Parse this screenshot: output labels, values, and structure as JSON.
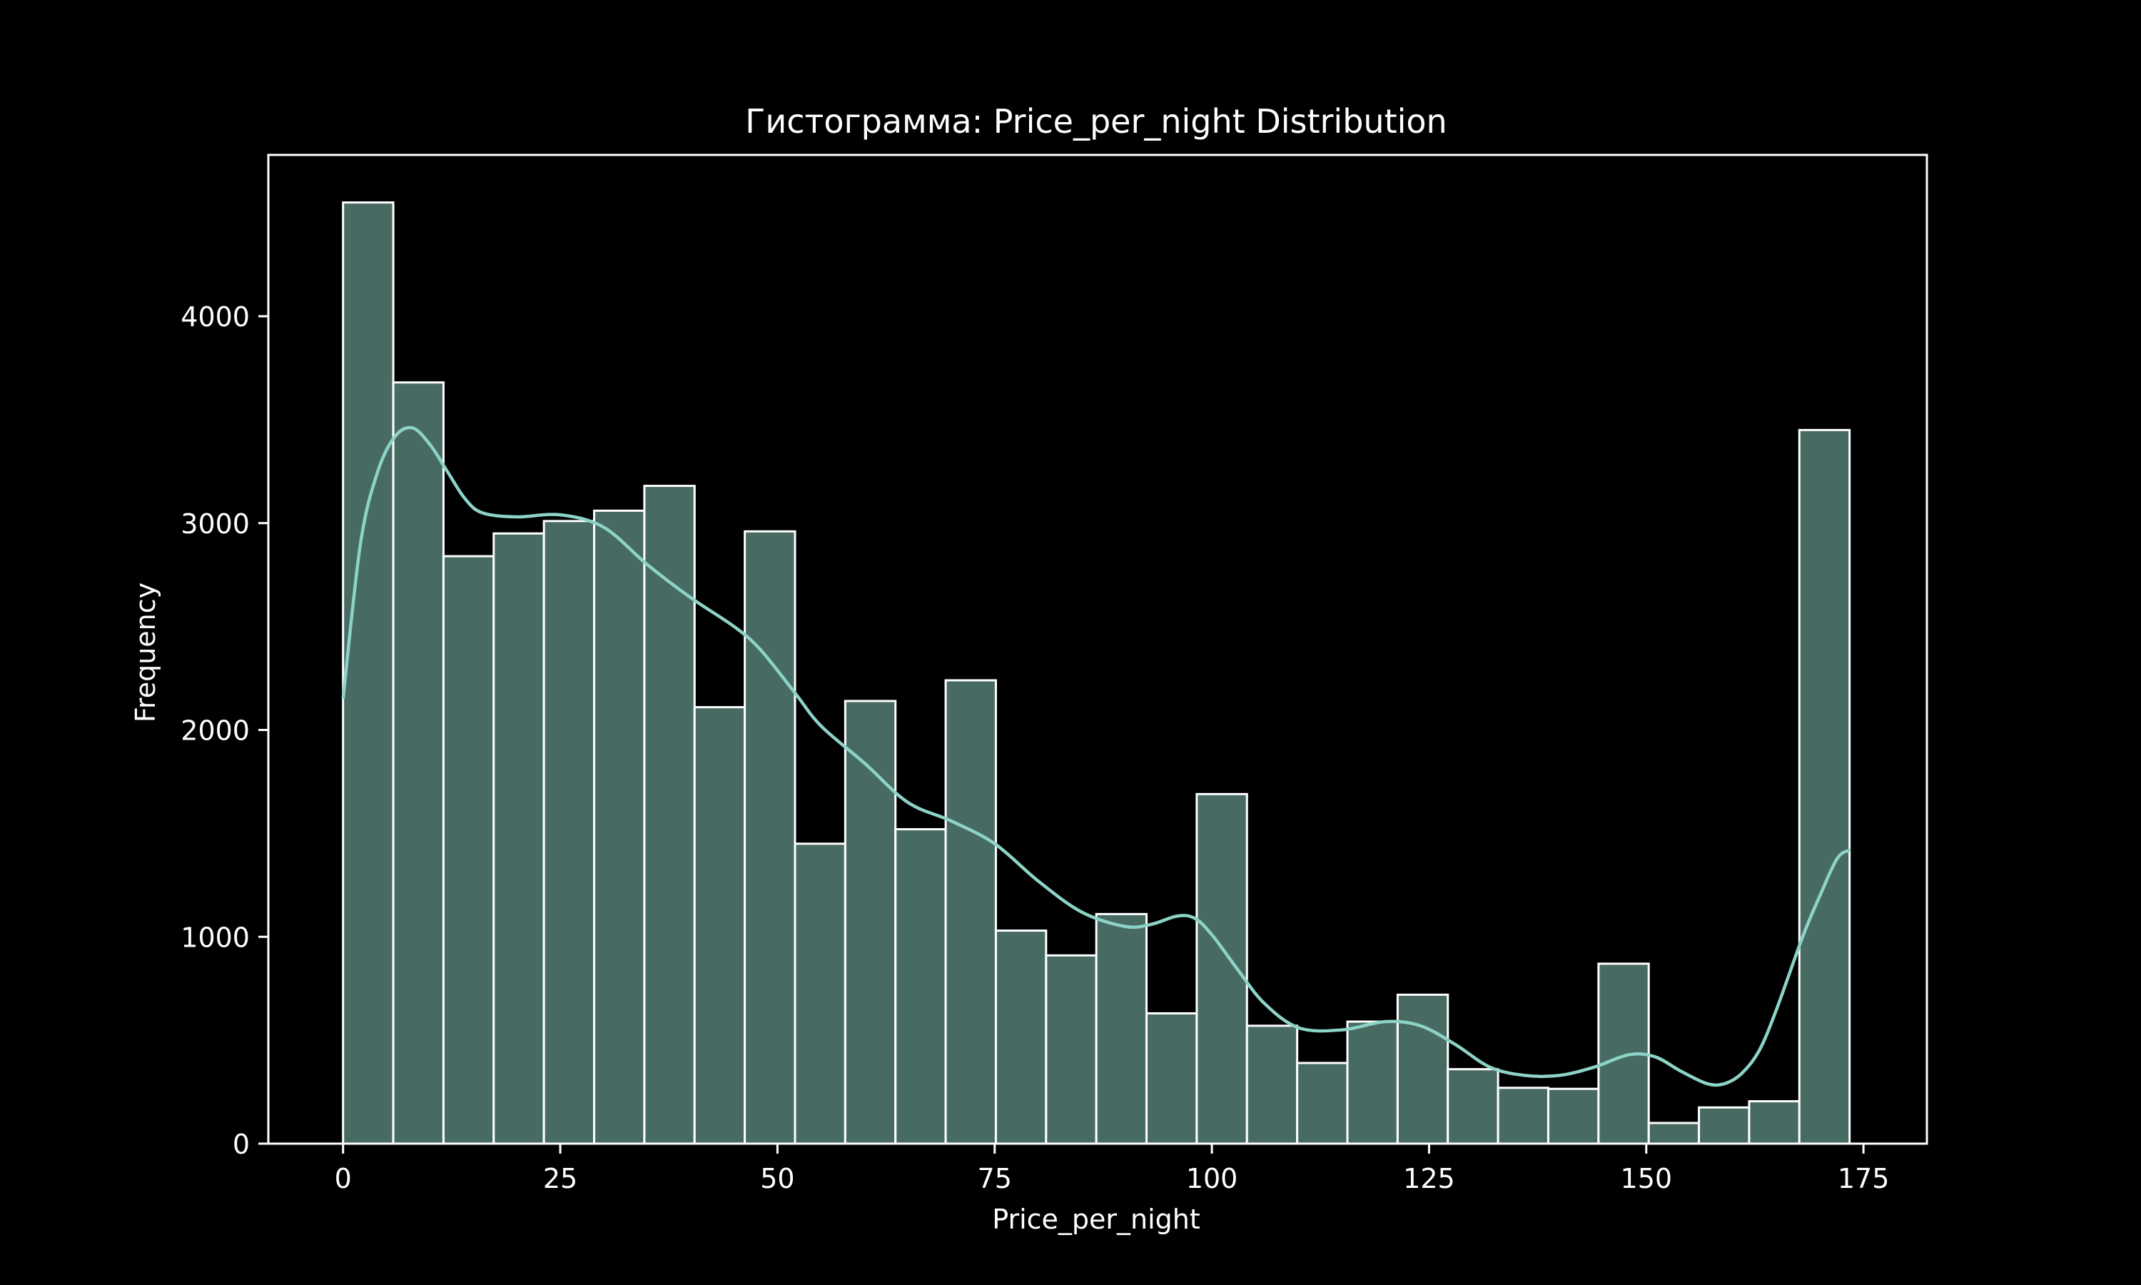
{
  "chart_data": {
    "type": "bar",
    "title": "Гистограмма: Price_per_night Distribution",
    "xlabel": "Price_per_night",
    "ylabel": "Frequency",
    "xlim": [
      -8.6,
      182.3
    ],
    "ylim": [
      0,
      4780
    ],
    "x_ticks": [
      0,
      25,
      50,
      75,
      100,
      125,
      150,
      175
    ],
    "y_ticks": [
      0,
      1000,
      2000,
      3000,
      4000
    ],
    "bin_width": 5.78,
    "bins": [
      {
        "x0": 0,
        "count": 4550
      },
      {
        "x0": 5.78,
        "count": 3680
      },
      {
        "x0": 11.56,
        "count": 2840
      },
      {
        "x0": 17.34,
        "count": 2950
      },
      {
        "x0": 23.12,
        "count": 3010
      },
      {
        "x0": 28.9,
        "count": 3060
      },
      {
        "x0": 34.68,
        "count": 3180
      },
      {
        "x0": 40.46,
        "count": 2110
      },
      {
        "x0": 46.24,
        "count": 2960
      },
      {
        "x0": 52.02,
        "count": 1450
      },
      {
        "x0": 57.8,
        "count": 2140
      },
      {
        "x0": 63.58,
        "count": 1520
      },
      {
        "x0": 69.36,
        "count": 2240
      },
      {
        "x0": 75.14,
        "count": 1030
      },
      {
        "x0": 80.92,
        "count": 910
      },
      {
        "x0": 86.7,
        "count": 1110
      },
      {
        "x0": 92.48,
        "count": 630
      },
      {
        "x0": 98.26,
        "count": 1690
      },
      {
        "x0": 104.04,
        "count": 570
      },
      {
        "x0": 109.82,
        "count": 390
      },
      {
        "x0": 115.6,
        "count": 590
      },
      {
        "x0": 121.38,
        "count": 720
      },
      {
        "x0": 127.16,
        "count": 360
      },
      {
        "x0": 132.94,
        "count": 270
      },
      {
        "x0": 138.72,
        "count": 265
      },
      {
        "x0": 144.5,
        "count": 870
      },
      {
        "x0": 150.28,
        "count": 100
      },
      {
        "x0": 156.06,
        "count": 175
      },
      {
        "x0": 161.84,
        "count": 205
      },
      {
        "x0": 167.62,
        "count": 3450
      }
    ],
    "kde": {
      "x": [
        0,
        2,
        4,
        6,
        8,
        10,
        12,
        14,
        16,
        20,
        25,
        30,
        35,
        40,
        45,
        48,
        52,
        55,
        60,
        65,
        70,
        75,
        80,
        85,
        90,
        93,
        96,
        98,
        100,
        103,
        106,
        110,
        115,
        120,
        124,
        128,
        132,
        136,
        140,
        144,
        148,
        151,
        154,
        157,
        159,
        161,
        163,
        165,
        168,
        170,
        172,
        173.5
      ],
      "y": [
        2150,
        2900,
        3250,
        3420,
        3460,
        3380,
        3250,
        3120,
        3050,
        3030,
        3040,
        2980,
        2800,
        2640,
        2500,
        2390,
        2180,
        2020,
        1840,
        1650,
        1560,
        1450,
        1270,
        1120,
        1050,
        1060,
        1100,
        1090,
        1010,
        840,
        680,
        560,
        550,
        590,
        570,
        480,
        370,
        330,
        330,
        370,
        430,
        420,
        350,
        290,
        290,
        340,
        450,
        650,
        1000,
        1200,
        1380,
        1420
      ]
    },
    "colors": {
      "background": "#000000",
      "bar_fill": "#476b63",
      "bar_edge": "#ffffff",
      "kde_line": "#8dd3c7",
      "text": "#ffffff"
    },
    "grid": false,
    "legend": "none"
  }
}
